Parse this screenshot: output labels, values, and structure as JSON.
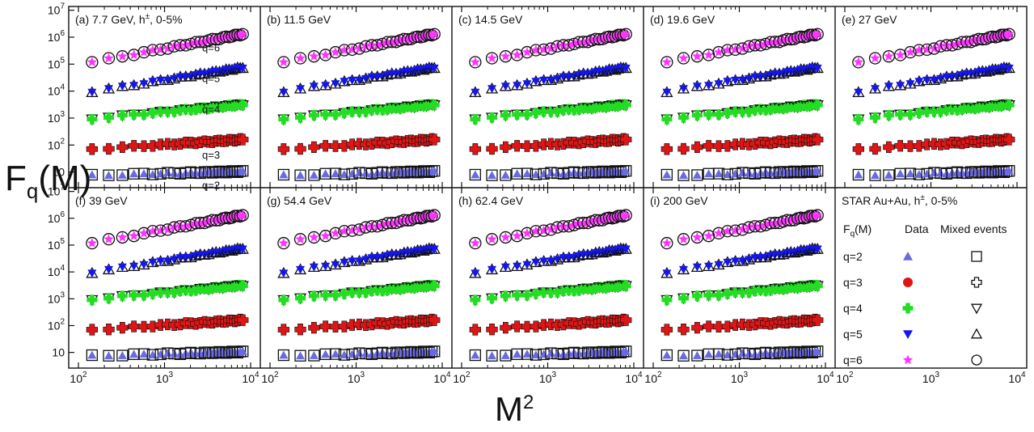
{
  "chart_data": {
    "type": "scatter",
    "ylabel": "F",
    "ylabel_sub": "q",
    "ylabel_suffix": "(M)",
    "xlabel": "M",
    "xlabel_sup": "2",
    "x_scale": "log",
    "y_scale": "log",
    "xlim": [
      100,
      10000
    ],
    "ylim": [
      3,
      12000000
    ],
    "x_tick_labels": [
      "10",
      "2",
      "10",
      "3",
      "10",
      "4"
    ],
    "y_tick_labels": [
      {
        "base": "10",
        "exp": "7"
      },
      {
        "base": "10",
        "exp": "6"
      },
      {
        "base": "10",
        "exp": "5"
      },
      {
        "base": "10",
        "exp": "4"
      },
      {
        "base": "10",
        "exp": "3"
      },
      {
        "base": "10",
        "exp": "2"
      },
      {
        "base": "10",
        "exp": ""
      }
    ],
    "x_values": [
      144,
      225,
      324,
      441,
      576,
      729,
      900,
      1089,
      1296,
      1521,
      1764,
      2025,
      2304,
      2601,
      2916,
      3249,
      3600,
      3969,
      4356,
      4761,
      5184,
      5625,
      6084,
      6561,
      7056,
      7569,
      8100
    ],
    "q_series": [
      {
        "q": 2,
        "y_start": 7.5,
        "y_end": 10.5
      },
      {
        "q": 3,
        "y_start": 70,
        "y_end": 160
      },
      {
        "q": 4,
        "y_start": 950,
        "y_end": 3200
      },
      {
        "q": 5,
        "y_start": 9500,
        "y_end": 75000
      },
      {
        "q": 6,
        "y_start": 120000,
        "y_end": 1300000
      }
    ],
    "q_labels": [
      "q=6",
      "q=5",
      "q=4",
      "q=3",
      "q=2"
    ],
    "panels": [
      {
        "label": "(a) 7.7 GeV, h",
        "sup": "±",
        "suffix": ", 0-5%"
      },
      {
        "label": "(b) 11.5 GeV"
      },
      {
        "label": "(c) 14.5 GeV"
      },
      {
        "label": "(d) 19.6 GeV"
      },
      {
        "label": "(e) 27 GeV"
      },
      {
        "label": "(f) 39 GeV"
      },
      {
        "label": "(g) 54.4 GeV"
      },
      {
        "label": "(h) 62.4 GeV"
      },
      {
        "label": "(i) 200 GeV"
      }
    ],
    "legend": {
      "title": "STAR Au+Au, h",
      "title_sup": "±",
      "title_suffix": ", 0-5%",
      "col_head": "F",
      "col_head_sub": "q",
      "col_head_suffix": "(M)",
      "data_head": "Data",
      "mixed_head": "Mixed events",
      "rows": [
        {
          "q": "q=2",
          "data_marker": "triangle-up",
          "data_color": "#6a6ae0",
          "mixed_marker": "square"
        },
        {
          "q": "q=3",
          "data_marker": "circle",
          "data_color": "#e01515",
          "mixed_marker": "cross-open"
        },
        {
          "q": "q=4",
          "data_marker": "plus",
          "data_color": "#22dd22",
          "mixed_marker": "triangle-down-open"
        },
        {
          "q": "q=5",
          "data_marker": "triangle-down",
          "data_color": "#1515ee",
          "mixed_marker": "triangle-up-open"
        },
        {
          "q": "q=6",
          "data_marker": "star",
          "data_color": "#ff33ff",
          "mixed_marker": "circle-open"
        }
      ]
    },
    "colors": {
      "q2": "#6a6ae0",
      "q3": "#e01515",
      "q4": "#22dd22",
      "q5": "#1515ee",
      "q6": "#ff33ff",
      "mixed": "#111111"
    }
  }
}
